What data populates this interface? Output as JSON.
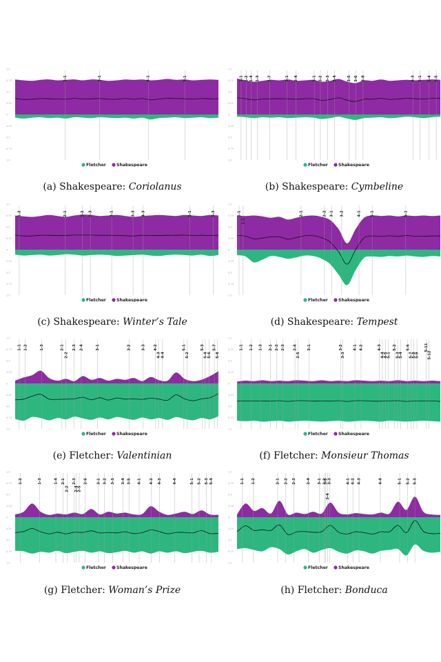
{
  "colors": {
    "fletcher": "#2db77f",
    "shakespeare": "#8e2aa3",
    "line": "#111111",
    "guide": "#9a9a9a",
    "tick": "#aaaaaa"
  },
  "legend": {
    "fletcher": "Fletcher",
    "shakespeare": "Shakespeare"
  },
  "y_ticks": [
    "1.0",
    "0.75",
    "0.5",
    "0.25",
    "0",
    "0.25",
    "0.5",
    "0.75",
    "1.0"
  ],
  "chart_data": [
    {
      "type": "area",
      "caption": {
        "label": "(a)",
        "author": "Shakespeare:",
        "work": "Coriolanus"
      },
      "ylim": [
        -1,
        1
      ],
      "scenes": [
        {
          "label": "2-1",
          "x": 0.245
        },
        {
          "label": "3-1",
          "x": 0.415
        },
        {
          "label": "4-1",
          "x": 0.655
        },
        {
          "label": "5-1",
          "x": 0.835
        }
      ],
      "series": [
        {
          "name": "Shakespeare",
          "values": [
            0.77,
            0.75,
            0.74,
            0.76,
            0.77,
            0.75,
            0.76,
            0.77,
            0.75,
            0.77,
            0.76,
            0.74,
            0.75,
            0.77,
            0.76,
            0.77,
            0.75,
            0.76,
            0.78,
            0.76,
            0.77,
            0.75,
            0.76,
            0.77,
            0.76
          ]
        },
        {
          "name": "Fletcher",
          "values": [
            0.07,
            0.09,
            0.07,
            0.06,
            0.08,
            0.07,
            0.09,
            0.06,
            0.07,
            0.08,
            0.06,
            0.07,
            0.08,
            0.07,
            0.09,
            0.07,
            0.11,
            0.08,
            0.07,
            0.06,
            0.08,
            0.07,
            0.06,
            0.08,
            0.07
          ]
        }
      ]
    },
    {
      "type": "area",
      "caption": {
        "label": "(b)",
        "author": "Shakespeare:",
        "work": "Cymbeline"
      },
      "ylim": [
        -1,
        1
      ],
      "scenes": [
        {
          "label": "1-1",
          "x": 0.02
        },
        {
          "label": "1-2",
          "x": 0.045
        },
        {
          "label": "1-4",
          "x": 0.07
        },
        {
          "label": "1-3",
          "x": 0.1
        },
        {
          "label": "1-7",
          "x": 0.16
        },
        {
          "label": "2-1",
          "x": 0.245
        },
        {
          "label": "2-4",
          "x": 0.29
        },
        {
          "label": "3-1",
          "x": 0.38
        },
        {
          "label": "3-2",
          "x": 0.41
        },
        {
          "label": "3-3",
          "x": 0.445
        },
        {
          "label": "3-4",
          "x": 0.48
        },
        {
          "label": "3-5",
          "x": 0.55
        },
        {
          "label": "3-6",
          "x": 0.585
        },
        {
          "label": "3-8",
          "x": 0.62
        },
        {
          "label": "4-3",
          "x": 0.865
        },
        {
          "label": "5-1",
          "x": 0.9
        },
        {
          "label": "5-4",
          "x": 0.945
        },
        {
          "label": "5-5",
          "x": 0.98
        }
      ],
      "series": [
        {
          "name": "Shakespeare",
          "values": [
            0.79,
            0.75,
            0.72,
            0.74,
            0.76,
            0.75,
            0.77,
            0.74,
            0.75,
            0.76,
            0.72,
            0.74,
            0.78,
            0.72,
            0.69,
            0.75,
            0.74,
            0.77,
            0.74,
            0.75,
            0.76,
            0.75,
            0.76,
            0.77,
            0.76
          ]
        },
        {
          "name": "Fletcher",
          "values": [
            0.05,
            0.06,
            0.08,
            0.06,
            0.07,
            0.06,
            0.08,
            0.07,
            0.06,
            0.07,
            0.1,
            0.08,
            0.05,
            0.09,
            0.12,
            0.08,
            0.07,
            0.06,
            0.08,
            0.07,
            0.05,
            0.06,
            0.08,
            0.06,
            0.05
          ]
        }
      ]
    },
    {
      "type": "area",
      "caption": {
        "label": "(c)",
        "author": "Shakespeare:",
        "work": "Winter’s Tale"
      },
      "ylim": [
        -1,
        1
      ],
      "scenes": [
        {
          "label": "1-2",
          "x": 0.02
        },
        {
          "label": "2-1",
          "x": 0.245
        },
        {
          "label": "2-2",
          "x": 0.33
        },
        {
          "label": "2-3",
          "x": 0.37
        },
        {
          "label": "3-1",
          "x": 0.475
        },
        {
          "label": "3-3",
          "x": 0.58
        },
        {
          "label": "4-3",
          "x": 0.63
        },
        {
          "label": "5-1",
          "x": 0.86
        },
        {
          "label": "5-3",
          "x": 0.975
        }
      ],
      "series": [
        {
          "name": "Shakespeare",
          "values": [
            0.75,
            0.73,
            0.72,
            0.74,
            0.76,
            0.74,
            0.72,
            0.75,
            0.77,
            0.76,
            0.74,
            0.75,
            0.76,
            0.74,
            0.72,
            0.74,
            0.75,
            0.76,
            0.75,
            0.74,
            0.76,
            0.75,
            0.74,
            0.76,
            0.75
          ]
        },
        {
          "name": "Fletcher",
          "values": [
            0.11,
            0.13,
            0.12,
            0.11,
            0.13,
            0.12,
            0.1,
            0.11,
            0.13,
            0.12,
            0.11,
            0.12,
            0.14,
            0.13,
            0.12,
            0.11,
            0.13,
            0.14,
            0.12,
            0.11,
            0.12,
            0.13,
            0.11,
            0.14,
            0.12
          ]
        }
      ]
    },
    {
      "type": "area",
      "caption": {
        "label": "(d)",
        "author": "Shakespeare:",
        "work": "Tempest"
      },
      "ylim": [
        -1,
        1
      ],
      "scenes": [
        {
          "label": "1-1",
          "x": 0.01
        },
        {
          "label": "1-2",
          "x": 0.03
        },
        {
          "label": "2-1",
          "x": 0.315
        },
        {
          "label": "2-2",
          "x": 0.43
        },
        {
          "label": "3-1",
          "x": 0.465
        },
        {
          "label": "3-2",
          "x": 0.515
        },
        {
          "label": "4-1",
          "x": 0.6
        },
        {
          "label": "5-1",
          "x": 0.665
        },
        {
          "label": "6-1",
          "x": 0.83
        }
      ],
      "series": [
        {
          "name": "Shakespeare",
          "values": [
            0.75,
            0.74,
            0.75,
            0.73,
            0.7,
            0.72,
            0.66,
            0.7,
            0.74,
            0.75,
            0.72,
            0.65,
            0.45,
            0.14,
            0.45,
            0.7,
            0.75,
            0.74,
            0.75,
            0.73,
            0.75,
            0.74,
            0.75,
            0.74,
            0.75
          ]
        },
        {
          "name": "Fletcher",
          "values": [
            0.12,
            0.15,
            0.28,
            0.22,
            0.14,
            0.16,
            0.2,
            0.17,
            0.13,
            0.14,
            0.2,
            0.32,
            0.55,
            0.78,
            0.45,
            0.18,
            0.15,
            0.16,
            0.14,
            0.15,
            0.13,
            0.15,
            0.16,
            0.14,
            0.15
          ]
        }
      ]
    },
    {
      "type": "area",
      "caption": {
        "label": "(e)",
        "author": "Fletcher:",
        "work": "Valentinian"
      },
      "ylim": [
        -1,
        1
      ],
      "scenes": [
        {
          "label": "1-1",
          "x": 0.02
        },
        {
          "label": "1-2",
          "x": 0.05
        },
        {
          "label": "1-3",
          "x": 0.13
        },
        {
          "label": "2-1",
          "x": 0.23
        },
        {
          "label": "2-2",
          "x": 0.25
        },
        {
          "label": "2-3",
          "x": 0.29
        },
        {
          "label": "2-4",
          "x": 0.325
        },
        {
          "label": "3-1",
          "x": 0.405
        },
        {
          "label": "3-2",
          "x": 0.56
        },
        {
          "label": "3-3",
          "x": 0.63
        },
        {
          "label": "4-2",
          "x": 0.69
        },
        {
          "label": "4-3",
          "x": 0.705
        },
        {
          "label": "4-4",
          "x": 0.725
        },
        {
          "label": "5-1",
          "x": 0.83
        },
        {
          "label": "5-2",
          "x": 0.845
        },
        {
          "label": "5-3",
          "x": 0.92
        },
        {
          "label": "5-4",
          "x": 0.935
        },
        {
          "label": "5-6",
          "x": 0.955
        },
        {
          "label": "5-7",
          "x": 0.98
        },
        {
          "label": "5-8",
          "x": 0.995
        }
      ],
      "series": [
        {
          "name": "Shakespeare",
          "values": [
            0.06,
            0.13,
            0.18,
            0.28,
            0.12,
            0.06,
            0.1,
            0.05,
            0.16,
            0.08,
            0.12,
            0.06,
            0.1,
            0.08,
            0.12,
            0.05,
            0.14,
            0.07,
            0.06,
            0.24,
            0.1,
            0.05,
            0.08,
            0.16,
            0.27
          ]
        },
        {
          "name": "Fletcher",
          "values": [
            0.78,
            0.82,
            0.74,
            0.76,
            0.81,
            0.76,
            0.79,
            0.73,
            0.77,
            0.8,
            0.75,
            0.79,
            0.74,
            0.77,
            0.8,
            0.75,
            0.79,
            0.76,
            0.8,
            0.74,
            0.78,
            0.81,
            0.76,
            0.79,
            0.72
          ]
        }
      ]
    },
    {
      "type": "area",
      "caption": {
        "label": "(f)",
        "author": "Fletcher:",
        "work": "Monsieur Thomas"
      },
      "ylim": [
        -1,
        1
      ],
      "scenes": [
        {
          "label": "1-1",
          "x": 0.02
        },
        {
          "label": "1-2",
          "x": 0.07
        },
        {
          "label": "1-3",
          "x": 0.115
        },
        {
          "label": "2-1",
          "x": 0.165
        },
        {
          "label": "2-2",
          "x": 0.195
        },
        {
          "label": "2-3",
          "x": 0.225
        },
        {
          "label": "2-4",
          "x": 0.285
        },
        {
          "label": "2-5",
          "x": 0.3
        },
        {
          "label": "3-1",
          "x": 0.355
        },
        {
          "label": "3-2",
          "x": 0.51
        },
        {
          "label": "3-3",
          "x": 0.52
        },
        {
          "label": "4-1",
          "x": 0.58
        },
        {
          "label": "4-2",
          "x": 0.61
        },
        {
          "label": "4-3",
          "x": 0.7
        },
        {
          "label": "4-4",
          "x": 0.715
        },
        {
          "label": "4-5",
          "x": 0.73
        },
        {
          "label": "5-1",
          "x": 0.745
        },
        {
          "label": "5-2",
          "x": 0.775
        },
        {
          "label": "5-3",
          "x": 0.79
        },
        {
          "label": "5-4",
          "x": 0.805
        },
        {
          "label": "5-6",
          "x": 0.84
        },
        {
          "label": "5-7",
          "x": 0.855
        },
        {
          "label": "5-8",
          "x": 0.87
        },
        {
          "label": "5-9",
          "x": 0.885
        },
        {
          "label": "5-11",
          "x": 0.93
        },
        {
          "label": "5-12",
          "x": 0.945
        }
      ],
      "series": [
        {
          "name": "Shakespeare",
          "values": [
            0.04,
            0.06,
            0.05,
            0.07,
            0.05,
            0.06,
            0.05,
            0.07,
            0.06,
            0.05,
            0.07,
            0.05,
            0.06,
            0.05,
            0.07,
            0.06,
            0.05,
            0.06,
            0.05,
            0.07,
            0.05,
            0.06,
            0.05,
            0.06,
            0.05
          ]
        },
        {
          "name": "Fletcher",
          "values": [
            0.82,
            0.83,
            0.82,
            0.84,
            0.83,
            0.82,
            0.84,
            0.83,
            0.82,
            0.83,
            0.84,
            0.83,
            0.82,
            0.84,
            0.83,
            0.82,
            0.83,
            0.84,
            0.82,
            0.83,
            0.84,
            0.83,
            0.82,
            0.83,
            0.84
          ]
        }
      ]
    },
    {
      "type": "area",
      "caption": {
        "label": "(g)",
        "author": "Fletcher:",
        "work": "Woman’s Prize"
      },
      "ylim": [
        -1,
        1
      ],
      "scenes": [
        {
          "label": "1-2",
          "x": 0.025
        },
        {
          "label": "1-3",
          "x": 0.12
        },
        {
          "label": "1-4",
          "x": 0.2
        },
        {
          "label": "2-1",
          "x": 0.235
        },
        {
          "label": "2-2",
          "x": 0.255
        },
        {
          "label": "2-3",
          "x": 0.29
        },
        {
          "label": "2-4",
          "x": 0.3
        },
        {
          "label": "2-5",
          "x": 0.315
        },
        {
          "label": "2-6",
          "x": 0.345
        },
        {
          "label": "3-1",
          "x": 0.41
        },
        {
          "label": "3-2",
          "x": 0.44
        },
        {
          "label": "3-3",
          "x": 0.48
        },
        {
          "label": "3-4",
          "x": 0.53
        },
        {
          "label": "3-5",
          "x": 0.56
        },
        {
          "label": "4-1",
          "x": 0.61
        },
        {
          "label": "4-2",
          "x": 0.67
        },
        {
          "label": "4-3",
          "x": 0.71
        },
        {
          "label": "4-4",
          "x": 0.785
        },
        {
          "label": "5-1",
          "x": 0.87
        },
        {
          "label": "5-2",
          "x": 0.905
        },
        {
          "label": "5-3",
          "x": 0.94
        },
        {
          "label": "5-4",
          "x": 0.965
        }
      ],
      "series": [
        {
          "name": "Shakespeare",
          "values": [
            0.06,
            0.12,
            0.3,
            0.12,
            0.05,
            0.08,
            0.06,
            0.1,
            0.07,
            0.18,
            0.06,
            0.12,
            0.08,
            0.1,
            0.06,
            0.07,
            0.24,
            0.12,
            0.05,
            0.08,
            0.12,
            0.07,
            0.15,
            0.06,
            0.05
          ]
        },
        {
          "name": "Fletcher",
          "values": [
            0.74,
            0.75,
            0.8,
            0.76,
            0.78,
            0.74,
            0.79,
            0.76,
            0.74,
            0.78,
            0.75,
            0.79,
            0.77,
            0.74,
            0.78,
            0.75,
            0.8,
            0.75,
            0.78,
            0.75,
            0.79,
            0.76,
            0.74,
            0.78,
            0.76
          ]
        }
      ]
    },
    {
      "type": "area",
      "caption": {
        "label": "(h)",
        "author": "Fletcher:",
        "work": "Bonduca"
      },
      "ylim": [
        -1,
        1
      ],
      "scenes": [
        {
          "label": "1-1",
          "x": 0.025
        },
        {
          "label": "1-2",
          "x": 0.08
        },
        {
          "label": "2-1",
          "x": 0.2
        },
        {
          "label": "2-2",
          "x": 0.24
        },
        {
          "label": "2-3",
          "x": 0.28
        },
        {
          "label": "2-4",
          "x": 0.35
        },
        {
          "label": "3-1",
          "x": 0.405
        },
        {
          "label": "3-2",
          "x": 0.43
        },
        {
          "label": "3-3",
          "x": 0.455
        },
        {
          "label": "3-4",
          "x": 0.445
        },
        {
          "label": "3-5",
          "x": 0.435
        },
        {
          "label": "4-1",
          "x": 0.545
        },
        {
          "label": "4-2",
          "x": 0.57
        },
        {
          "label": "4-3",
          "x": 0.6
        },
        {
          "label": "4-4",
          "x": 0.705
        },
        {
          "label": "5-1",
          "x": 0.8
        },
        {
          "label": "5-2",
          "x": 0.84
        },
        {
          "label": "5-3",
          "x": 0.875
        }
      ],
      "series": [
        {
          "name": "Shakespeare",
          "values": [
            0.06,
            0.3,
            0.14,
            0.2,
            0.08,
            0.36,
            0.06,
            0.1,
            0.07,
            0.12,
            0.08,
            0.32,
            0.1,
            0.06,
            0.09,
            0.07,
            0.06,
            0.1,
            0.08,
            0.34,
            0.16,
            0.45,
            0.12,
            0.06,
            0.05
          ]
        },
        {
          "name": "Fletcher",
          "values": [
            0.7,
            0.68,
            0.72,
            0.75,
            0.66,
            0.7,
            0.82,
            0.75,
            0.7,
            0.78,
            0.72,
            0.68,
            0.76,
            0.8,
            0.73,
            0.75,
            0.8,
            0.74,
            0.72,
            0.7,
            0.84,
            0.6,
            0.74,
            0.78,
            0.76
          ]
        }
      ]
    }
  ]
}
